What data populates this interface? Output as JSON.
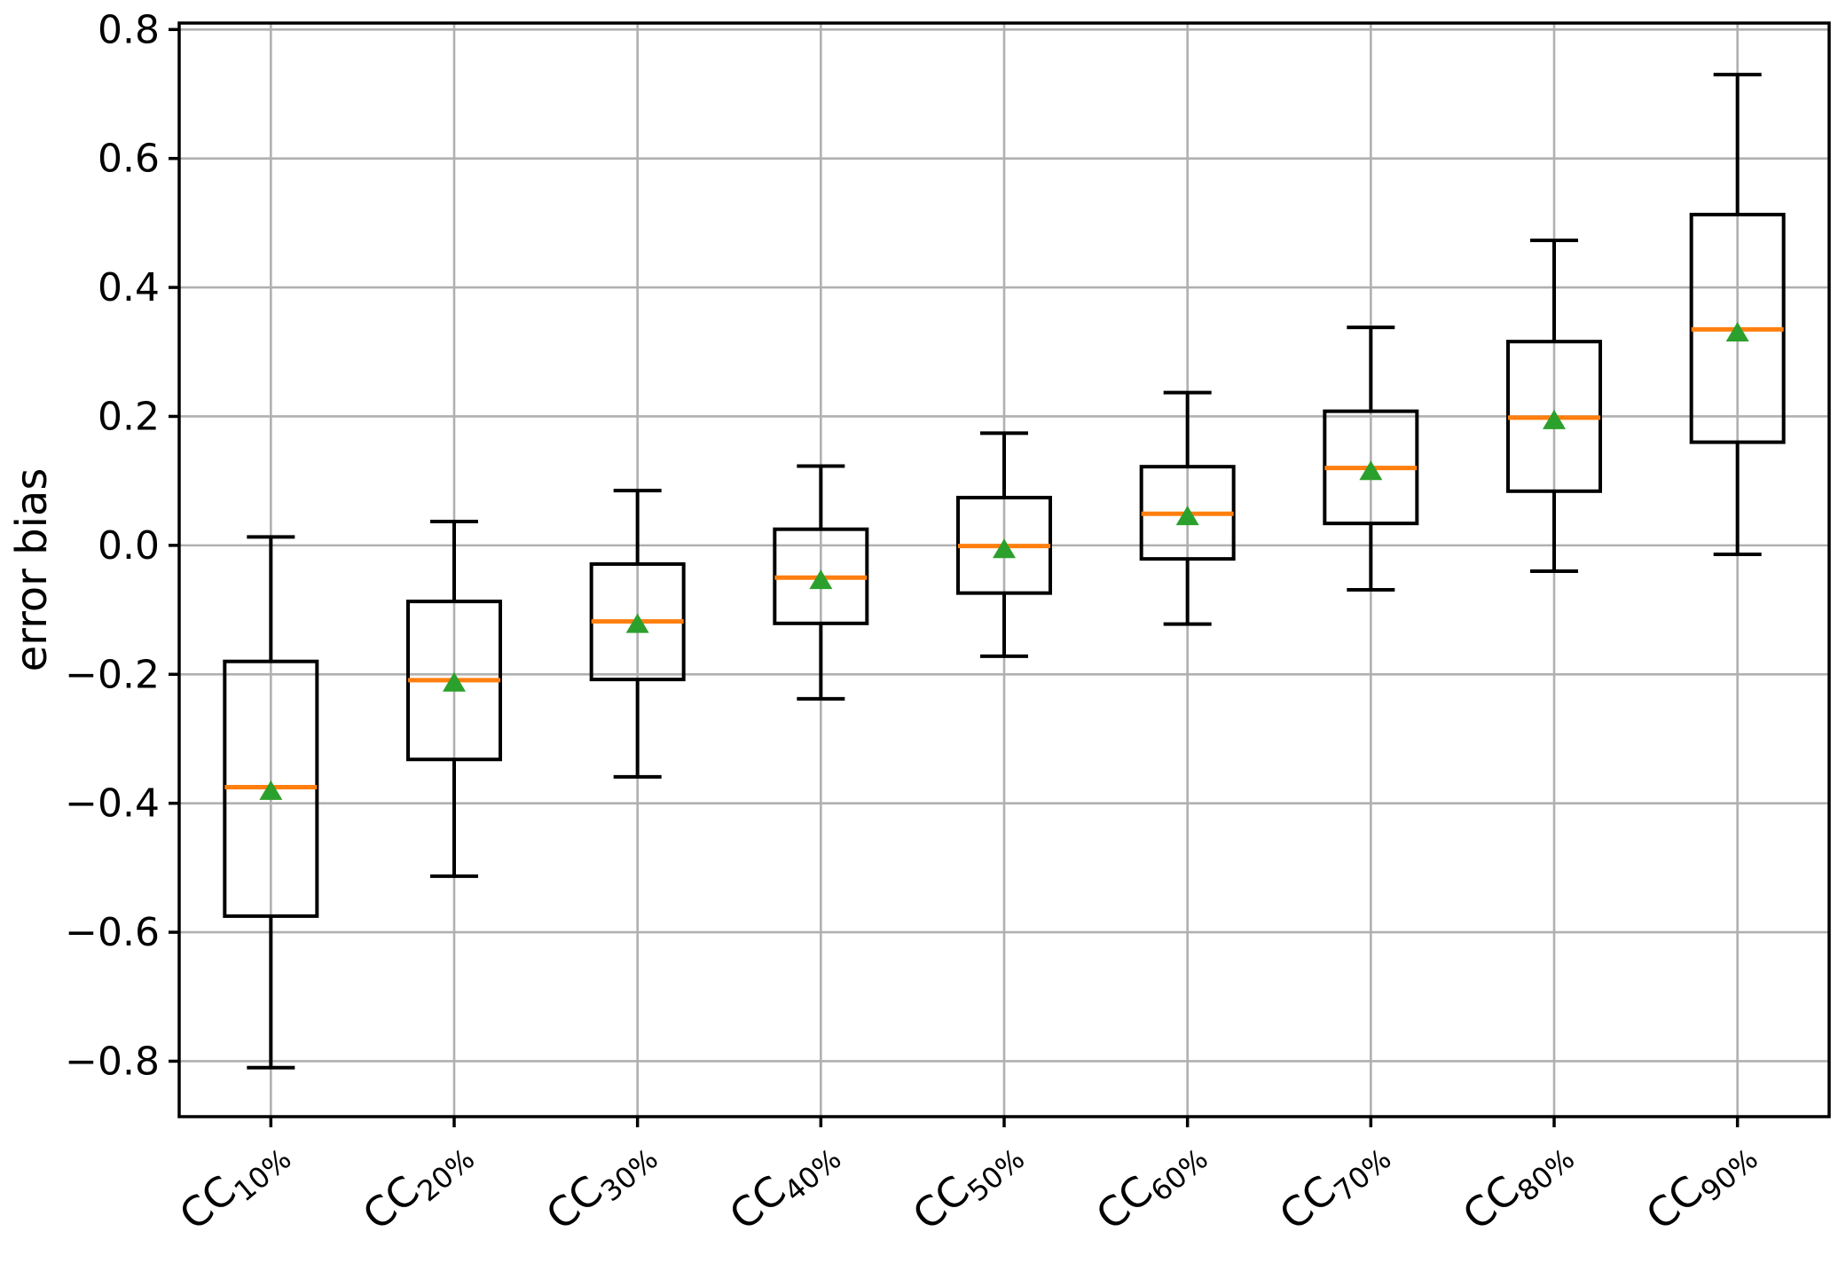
{
  "chart_data": {
    "type": "boxplot",
    "title": "",
    "xlabel": "",
    "ylabel": "error bias",
    "ylim": [
      -0.886,
      0.81
    ],
    "yticks": [
      -0.8,
      -0.6,
      -0.4,
      -0.2,
      0.0,
      0.2,
      0.4,
      0.6,
      0.8
    ],
    "grid": "both",
    "legend": "none",
    "categories": [
      "CC10%",
      "CC20%",
      "CC30%",
      "CC40%",
      "CC50%",
      "CC60%",
      "CC70%",
      "CC80%",
      "CC90%"
    ],
    "category_labels": [
      {
        "main": "CC",
        "sub": "10%"
      },
      {
        "main": "CC",
        "sub": "20%"
      },
      {
        "main": "CC",
        "sub": "30%"
      },
      {
        "main": "CC",
        "sub": "40%"
      },
      {
        "main": "CC",
        "sub": "50%"
      },
      {
        "main": "CC",
        "sub": "60%"
      },
      {
        "main": "CC",
        "sub": "70%"
      },
      {
        "main": "CC",
        "sub": "80%"
      },
      {
        "main": "CC",
        "sub": "90%"
      }
    ],
    "boxes": [
      {
        "label": "CC10%",
        "whisker_low": -0.81,
        "q1": -0.575,
        "median": -0.375,
        "mean": -0.381,
        "q3": -0.18,
        "whisker_high": 0.013
      },
      {
        "label": "CC20%",
        "whisker_low": -0.513,
        "q1": -0.332,
        "median": -0.209,
        "mean": -0.213,
        "q3": -0.087,
        "whisker_high": 0.037
      },
      {
        "label": "CC30%",
        "whisker_low": -0.359,
        "q1": -0.208,
        "median": -0.118,
        "mean": -0.122,
        "q3": -0.029,
        "whisker_high": 0.085
      },
      {
        "label": "CC40%",
        "whisker_low": -0.238,
        "q1": -0.121,
        "median": -0.05,
        "mean": -0.054,
        "q3": 0.025,
        "whisker_high": 0.123
      },
      {
        "label": "CC50%",
        "whisker_low": -0.172,
        "q1": -0.074,
        "median": -0.001,
        "mean": -0.006,
        "q3": 0.074,
        "whisker_high": 0.174
      },
      {
        "label": "CC60%",
        "whisker_low": -0.122,
        "q1": -0.021,
        "median": 0.049,
        "mean": 0.045,
        "q3": 0.122,
        "whisker_high": 0.237
      },
      {
        "label": "CC70%",
        "whisker_low": -0.069,
        "q1": 0.034,
        "median": 0.12,
        "mean": 0.115,
        "q3": 0.208,
        "whisker_high": 0.338
      },
      {
        "label": "CC80%",
        "whisker_low": -0.04,
        "q1": 0.084,
        "median": 0.198,
        "mean": 0.194,
        "q3": 0.316,
        "whisker_high": 0.473
      },
      {
        "label": "CC90%",
        "whisker_low": -0.014,
        "q1": 0.16,
        "median": 0.335,
        "mean": 0.33,
        "q3": 0.513,
        "whisker_high": 0.73
      }
    ],
    "colors": {
      "box_line": "#000000",
      "median_line": "#ff7f0e",
      "mean_marker": "#2ca02c",
      "grid_line": "#b0b0b0",
      "spine": "#000000",
      "background": "#ffffff"
    }
  }
}
